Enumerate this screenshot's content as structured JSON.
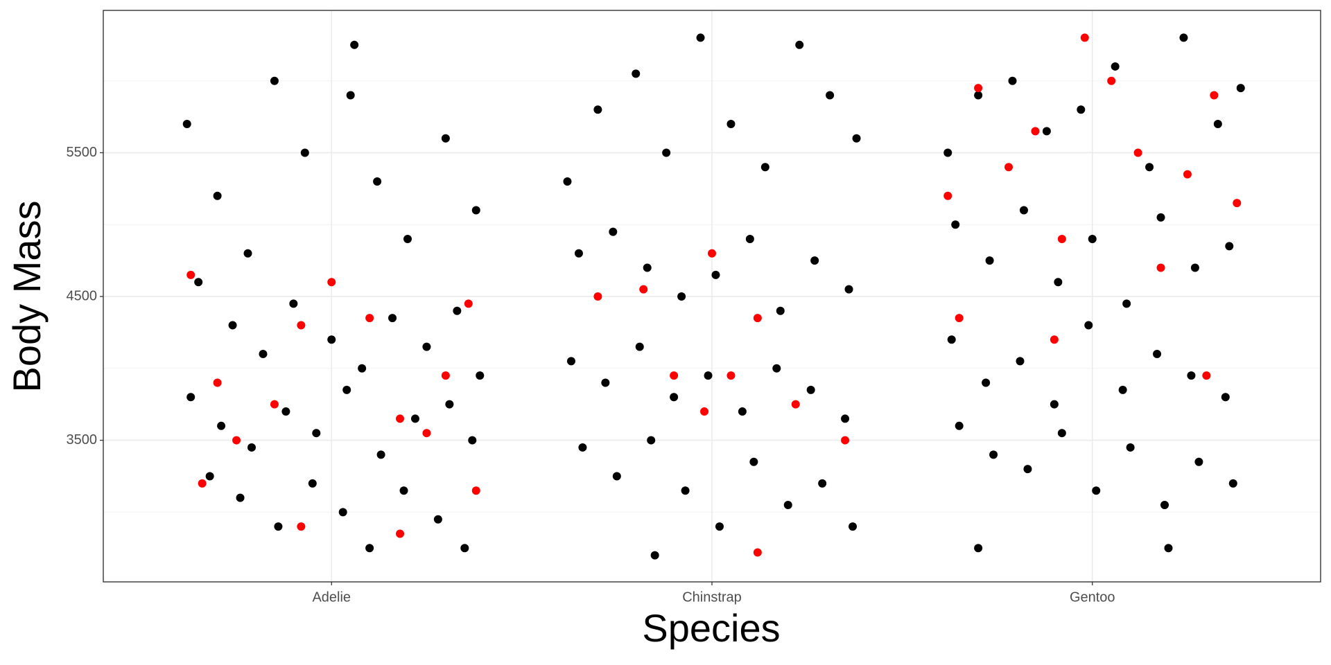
{
  "chart_data": {
    "type": "scatter",
    "x_label": "Species",
    "y_label": "Body Mass",
    "xlim": [
      0.4,
      3.6
    ],
    "ylim": [
      2515,
      6490
    ],
    "xticks": [
      {
        "value": 1,
        "label": "Adelie"
      },
      {
        "value": 2,
        "label": "Chinstrap"
      },
      {
        "value": 3,
        "label": "Gentoo"
      }
    ],
    "yticks": [
      3500,
      4500,
      5500
    ],
    "minor_yticks": [
      3000,
      4000,
      5000,
      6000
    ],
    "grid": true,
    "series": [
      {
        "color": "#000000",
        "x": [
          0.62,
          0.7,
          0.78,
          0.85,
          0.93,
          1.05,
          1.12,
          1.2,
          1.3,
          1.38,
          0.65,
          0.74,
          0.82,
          0.9,
          1.0,
          1.08,
          1.16,
          1.25,
          1.33,
          1.39,
          0.63,
          0.71,
          0.79,
          0.88,
          0.96,
          1.04,
          1.13,
          1.22,
          1.31,
          1.37,
          0.68,
          0.76,
          0.86,
          0.95,
          1.03,
          1.1,
          1.19,
          1.28,
          1.35,
          1.06,
          1.62,
          1.7,
          1.8,
          1.88,
          1.97,
          2.05,
          2.14,
          2.23,
          2.31,
          2.38,
          1.65,
          1.74,
          1.83,
          1.92,
          2.01,
          2.1,
          2.18,
          2.27,
          2.36,
          1.63,
          1.72,
          1.81,
          1.9,
          1.99,
          2.08,
          2.17,
          2.26,
          2.35,
          1.66,
          1.75,
          1.84,
          1.93,
          2.02,
          2.11,
          2.2,
          2.29,
          2.37,
          1.85,
          2.62,
          2.7,
          2.79,
          2.88,
          2.97,
          3.06,
          3.15,
          3.24,
          3.33,
          3.39,
          2.64,
          2.73,
          2.82,
          2.91,
          3.0,
          3.09,
          3.18,
          3.27,
          3.36,
          2.63,
          2.72,
          2.81,
          2.9,
          2.99,
          3.08,
          3.17,
          3.26,
          3.35,
          2.65,
          2.74,
          2.83,
          2.92,
          3.01,
          3.1,
          3.19,
          3.28,
          3.37,
          2.7,
          3.2
        ],
        "y": [
          5700,
          5200,
          4800,
          6000,
          5500,
          5900,
          5300,
          4900,
          5600,
          5100,
          4600,
          4300,
          4100,
          4450,
          4200,
          4000,
          4350,
          4150,
          4400,
          3950,
          3800,
          3600,
          3450,
          3700,
          3550,
          3850,
          3400,
          3650,
          3750,
          3500,
          3250,
          3100,
          2900,
          3200,
          3000,
          2750,
          3150,
          2950,
          2750,
          6250,
          5300,
          5800,
          6050,
          5500,
          6300,
          5700,
          5400,
          6250,
          5900,
          5600,
          4800,
          4950,
          4700,
          4500,
          4650,
          4900,
          4400,
          4750,
          4550,
          4050,
          3900,
          4150,
          3800,
          3950,
          3700,
          4000,
          3850,
          3650,
          3450,
          3250,
          3500,
          3150,
          2900,
          3350,
          3050,
          3200,
          2900,
          2700,
          5500,
          5900,
          6000,
          5650,
          5800,
          6100,
          5400,
          6300,
          5700,
          5950,
          5000,
          4750,
          5100,
          4600,
          4900,
          4450,
          5050,
          4700,
          4850,
          4200,
          3900,
          4050,
          3750,
          4300,
          3850,
          4100,
          3950,
          3800,
          3600,
          3400,
          3300,
          3550,
          3150,
          3450,
          3050,
          3350,
          3200,
          2750,
          2750
        ]
      },
      {
        "color": "#ff0000",
        "x": [
          0.63,
          0.7,
          0.75,
          0.66,
          0.85,
          0.92,
          1.0,
          1.1,
          1.18,
          1.25,
          1.3,
          1.36,
          0.92,
          1.18,
          1.38,
          1.7,
          1.82,
          2.0,
          1.9,
          1.98,
          2.05,
          2.12,
          2.22,
          2.35,
          2.12,
          2.62,
          2.7,
          2.78,
          2.85,
          2.92,
          2.98,
          3.05,
          3.12,
          3.18,
          3.25,
          3.32,
          3.38,
          2.65,
          2.9,
          3.3
        ],
        "y": [
          4650,
          3900,
          3500,
          3200,
          3750,
          4300,
          4600,
          4350,
          3650,
          3550,
          3950,
          4450,
          2900,
          2850,
          3150,
          4500,
          4550,
          4800,
          3950,
          3700,
          3950,
          4350,
          3750,
          3500,
          2720,
          5200,
          5950,
          5400,
          5650,
          4900,
          6300,
          6000,
          5500,
          4700,
          5350,
          5900,
          5150,
          4350,
          4200,
          3950
        ]
      }
    ]
  }
}
